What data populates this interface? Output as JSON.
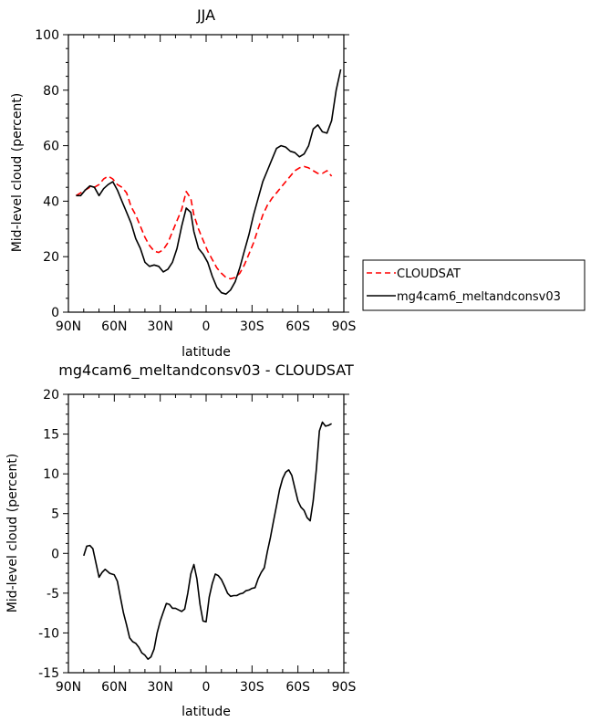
{
  "chart_data": [
    {
      "type": "line",
      "title": "JJA",
      "xlabel": "latitude",
      "ylabel": "Mid-level cloud (percent)",
      "xlim": [
        90,
        -90
      ],
      "ylim": [
        0,
        100
      ],
      "x_ticks": [
        90,
        60,
        30,
        0,
        -30,
        -60,
        -90
      ],
      "x_tick_labels": [
        "90N",
        "60N",
        "30N",
        "0",
        "30S",
        "60S",
        "90S"
      ],
      "y_ticks": [
        0,
        20,
        40,
        60,
        80,
        100
      ],
      "y_tick_labels": [
        "0",
        "20",
        "40",
        "60",
        "80",
        "100"
      ],
      "legend_position": "right",
      "series": [
        {
          "name": "CLOUDSAT",
          "color": "#ff0000",
          "dash": "dashed",
          "x": [
            85,
            82,
            79,
            76,
            73,
            70,
            67,
            64,
            61,
            58,
            55,
            52,
            49,
            46,
            43,
            40,
            37,
            34,
            31,
            28,
            25,
            22,
            19,
            16,
            13,
            10,
            8,
            5,
            2,
            -1,
            -4,
            -7,
            -10,
            -13,
            -16,
            -19,
            -22,
            -25,
            -28,
            -31,
            -34,
            -37,
            -40,
            -43,
            -46,
            -49,
            -52,
            -55,
            -58,
            -61,
            -64,
            -67,
            -70,
            -73,
            -76,
            -79,
            -82
          ],
          "y": [
            42,
            43,
            44,
            45,
            45,
            46,
            48,
            49,
            48,
            46,
            45,
            43,
            38,
            35,
            31,
            27,
            24,
            22,
            21.5,
            22.5,
            25,
            29,
            33,
            37,
            43.5,
            41,
            35,
            30,
            26,
            22,
            19,
            16,
            14,
            12.5,
            12,
            12.5,
            14,
            17,
            21,
            25,
            30,
            35,
            38.5,
            41,
            43,
            45,
            47,
            49,
            51,
            52,
            52.5,
            52,
            51,
            50,
            50,
            51,
            49
          ]
        },
        {
          "name": "mg4cam6_meltandconsv03",
          "color": "#000000",
          "dash": "solid",
          "x": [
            85,
            82,
            79,
            76,
            73,
            70,
            67,
            64,
            61,
            58,
            55,
            52,
            49,
            46,
            43,
            40,
            37,
            34,
            31,
            28,
            25,
            22,
            19,
            16,
            13,
            10,
            8,
            5,
            2,
            -1,
            -4,
            -7,
            -10,
            -13,
            -16,
            -19,
            -22,
            -25,
            -28,
            -31,
            -34,
            -37,
            -40,
            -43,
            -46,
            -49,
            -52,
            -55,
            -58,
            -61,
            -64,
            -67,
            -70,
            -73,
            -76,
            -79,
            -82,
            -85,
            -88
          ],
          "y": [
            42,
            42,
            44,
            45.5,
            45,
            42,
            44.5,
            46,
            47,
            44,
            40,
            36,
            32,
            26.5,
            23,
            18,
            16.5,
            17,
            16.5,
            14.5,
            15.5,
            18,
            23,
            31,
            37.5,
            36,
            29,
            23,
            21,
            18,
            13,
            9,
            7,
            6.5,
            8,
            11,
            16,
            22,
            28,
            35,
            41,
            47,
            51,
            55,
            59,
            60,
            59.5,
            58,
            57.5,
            56,
            57,
            60,
            66,
            67.5,
            65,
            64.5,
            69,
            80,
            87.5
          ]
        }
      ]
    },
    {
      "type": "line",
      "title": "mg4cam6_meltandconsv03 - CLOUDSAT",
      "xlabel": "latitude",
      "ylabel": "Mid-level cloud (percent)",
      "xlim": [
        90,
        -90
      ],
      "ylim": [
        -15,
        20
      ],
      "x_ticks": [
        90,
        60,
        30,
        0,
        -30,
        -60,
        -90
      ],
      "x_tick_labels": [
        "90N",
        "60N",
        "30N",
        "0",
        "30S",
        "60S",
        "90S"
      ],
      "y_ticks": [
        -15,
        -10,
        -5,
        0,
        5,
        10,
        15,
        20
      ],
      "y_tick_labels": [
        "-15",
        "-10",
        "-5",
        "0",
        "5",
        "10",
        "15",
        "20"
      ],
      "series": [
        {
          "color": "#000000",
          "dash": "solid",
          "x": [
            80,
            78,
            76,
            74,
            72,
            70,
            68,
            66,
            63,
            60,
            58,
            56,
            54,
            52,
            50,
            48,
            46,
            44,
            42,
            40,
            38,
            36,
            34,
            32,
            30,
            28,
            26,
            24,
            22,
            20,
            18,
            16,
            14,
            12,
            10,
            8,
            6,
            4,
            2,
            0,
            -2,
            -4,
            -6,
            -8,
            -10,
            -12,
            -14,
            -16,
            -18,
            -20,
            -22,
            -24,
            -26,
            -28,
            -30,
            -32,
            -34,
            -36,
            -38,
            -40,
            -42,
            -44,
            -46,
            -48,
            -50,
            -52,
            -54,
            -56,
            -58,
            -60,
            -62,
            -64,
            -66,
            -68,
            -70,
            -72,
            -74,
            -76,
            -78,
            -80,
            -82
          ],
          "y": [
            -0.3,
            0.9,
            1.0,
            0.6,
            -1.2,
            -3.0,
            -2.4,
            -2.0,
            -2.5,
            -2.7,
            -3.5,
            -5.5,
            -7.5,
            -9.0,
            -10.6,
            -11.1,
            -11.3,
            -11.8,
            -12.5,
            -12.8,
            -13.3,
            -13.0,
            -12.0,
            -10.0,
            -8.5,
            -7.4,
            -6.3,
            -6.4,
            -6.9,
            -6.9,
            -7.1,
            -7.3,
            -7.0,
            -5.0,
            -2.6,
            -1.4,
            -3.2,
            -6.4,
            -8.5,
            -8.6,
            -5.5,
            -3.8,
            -2.6,
            -2.8,
            -3.3,
            -4.1,
            -5.0,
            -5.4,
            -5.3,
            -5.3,
            -5.1,
            -5.0,
            -4.7,
            -4.6,
            -4.4,
            -4.3,
            -3.2,
            -2.4,
            -1.8,
            0.2,
            2.0,
            4.0,
            6.0,
            8.0,
            9.4,
            10.2,
            10.5,
            9.8,
            8.2,
            6.6,
            5.8,
            5.4,
            4.5,
            4.1,
            6.6,
            10.5,
            15.4,
            16.5,
            16.0,
            16.1,
            16.3
          ]
        }
      ]
    }
  ]
}
